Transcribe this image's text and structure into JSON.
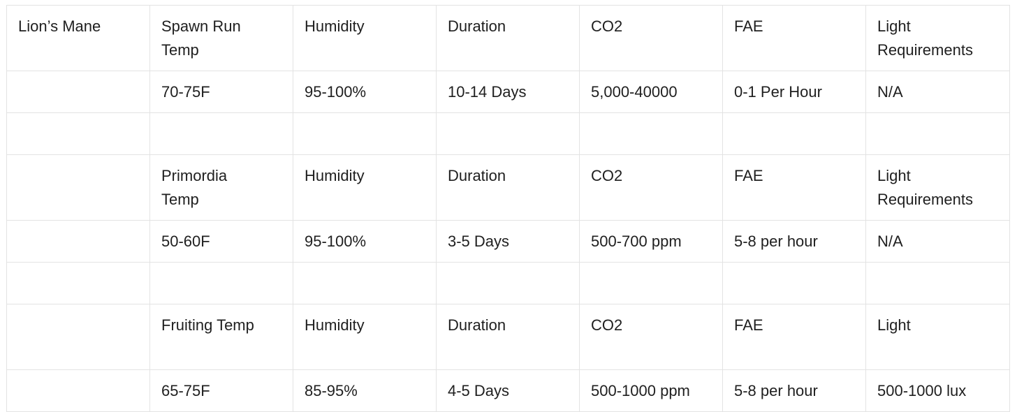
{
  "table": {
    "rows": [
      [
        "Lion’s Mane",
        "Spawn Run Temp",
        "Humidity",
        "Duration",
        "CO2",
        "FAE",
        "Light Requirements"
      ],
      [
        null,
        "70-75F",
        "95-100%",
        "10-14 Days",
        "5,000-40000",
        "0-1 Per Hour",
        "N/A"
      ],
      [
        null,
        null,
        null,
        null,
        null,
        null,
        null
      ],
      [
        null,
        "Primordia Temp",
        "Humidity",
        "Duration",
        "CO2",
        "FAE",
        "Light Requirements"
      ],
      [
        null,
        "50-60F",
        "95-100%",
        "3-5 Days",
        "500-700 ppm",
        "5-8 per hour",
        "N/A"
      ],
      [
        null,
        null,
        null,
        null,
        null,
        null,
        null
      ],
      [
        null,
        "Fruiting Temp",
        "Humidity",
        "Duration",
        "CO2",
        "FAE",
        "Light"
      ],
      [
        null,
        "65-75F",
        "85-95%",
        "4-5 Days",
        "500-1000 ppm",
        "5-8 per hour",
        "500-1000 lux"
      ]
    ]
  }
}
